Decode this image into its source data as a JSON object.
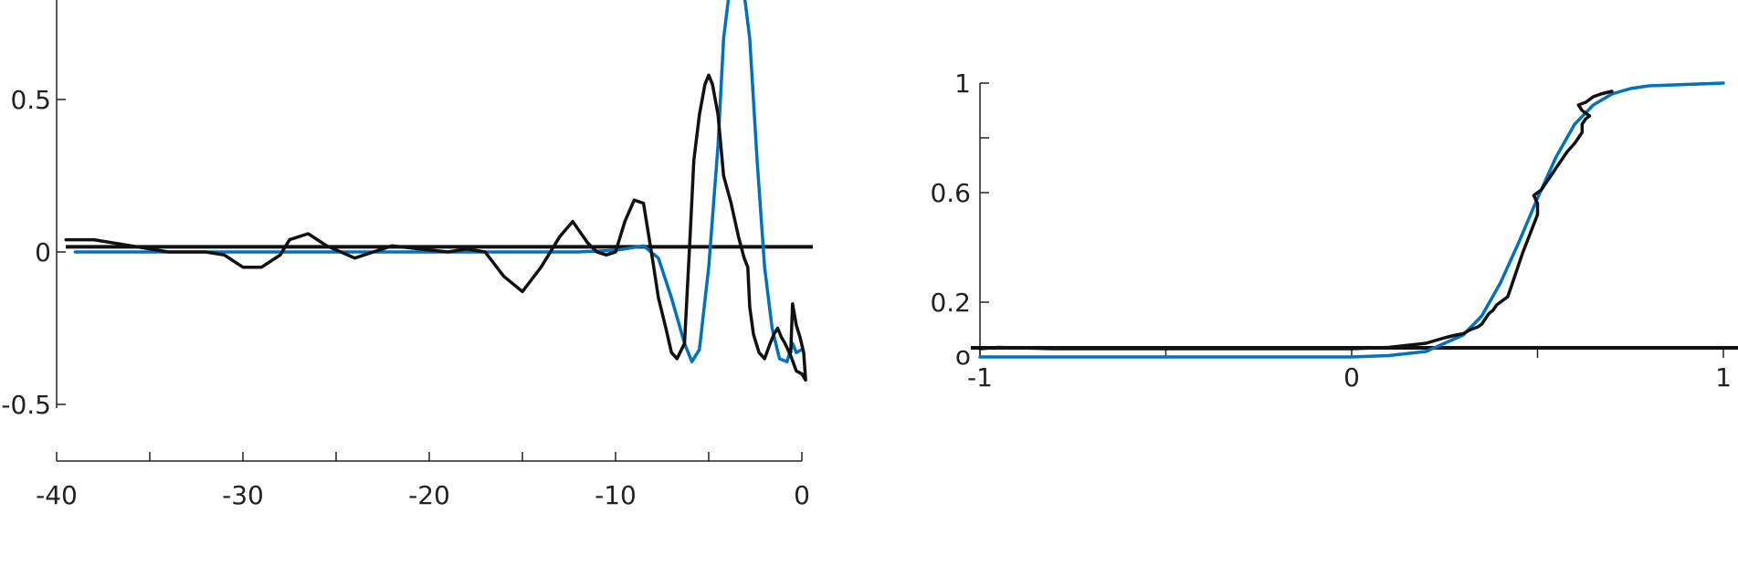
{
  "colors": {
    "blue": "#0072bd",
    "black": "#111111"
  },
  "chart_data": [
    {
      "type": "line",
      "title": "",
      "xlabel": "",
      "ylabel": "",
      "xlim": [
        -40,
        0
      ],
      "ylim": [
        -0.5,
        0.8
      ],
      "grid": false,
      "x_ticks": [
        -40,
        -35,
        -30,
        -25,
        -20,
        -15,
        -10,
        -5,
        0
      ],
      "x_tick_labels": [
        {
          "value": -40,
          "label": "-40"
        },
        {
          "value": -30,
          "label": "-30"
        },
        {
          "value": -20,
          "label": "-20"
        },
        {
          "value": -10,
          "label": "-10"
        },
        {
          "value": 0,
          "label": "0"
        }
      ],
      "y_tick_labels": [
        {
          "value": 0.5,
          "label": "0.5"
        },
        {
          "value": 0,
          "label": "0"
        },
        {
          "value": -0.5,
          "label": "-0.5"
        }
      ],
      "reference_line_y": 0.017,
      "series": [
        {
          "color": "#0072bd",
          "x": [
            -39.0,
            -36.0,
            -32.0,
            -28.0,
            -24.0,
            -20.0,
            -16.0,
            -12.0,
            -10.0,
            -8.5,
            -7.7,
            -7.0,
            -6.3,
            -5.9,
            -5.5,
            -5.0,
            -4.5,
            -4.2,
            -3.9,
            -3.6,
            -3.2,
            -2.8,
            -2.4,
            -2.0,
            -1.6,
            -1.2,
            -0.8,
            -0.5,
            -0.3,
            0.0
          ],
          "y": [
            0.0,
            0.0,
            0.0,
            0.0,
            0.0,
            0.0,
            0.0,
            0.0,
            0.005,
            0.02,
            -0.02,
            -0.15,
            -0.3,
            -0.36,
            -0.32,
            -0.05,
            0.35,
            0.7,
            0.85,
            0.9,
            0.9,
            0.7,
            0.3,
            -0.05,
            -0.25,
            -0.35,
            -0.36,
            -0.3,
            -0.33,
            -0.32
          ]
        },
        {
          "color": "#111111",
          "x": [
            -39.5,
            -38.0,
            -36.0,
            -34.0,
            -32.0,
            -31.0,
            -30.0,
            -29.0,
            -28.0,
            -27.5,
            -26.5,
            -25.5,
            -24.0,
            -23.0,
            -22.0,
            -20.5,
            -19.0,
            -18.0,
            -17.0,
            -16.0,
            -15.0,
            -14.0,
            -13.0,
            -12.3,
            -11.5,
            -11.0,
            -10.5,
            -10.0,
            -9.5,
            -9.0,
            -8.5,
            -8.0,
            -7.7,
            -7.3,
            -7.0,
            -6.7,
            -6.3,
            -6.0,
            -5.8,
            -5.5,
            -5.2,
            -5.0,
            -4.8,
            -4.5,
            -4.2,
            -3.8,
            -3.4,
            -3.1,
            -2.9,
            -2.8,
            -2.6,
            -2.3,
            -2.0,
            -1.7,
            -1.5,
            -1.3,
            -1.1,
            -0.9,
            -0.6,
            -0.3,
            0.0,
            0.2,
            0.1,
            -0.1,
            -0.3,
            -0.5,
            -0.6
          ],
          "y": [
            0.04,
            0.04,
            0.02,
            0.0,
            0.0,
            -0.01,
            -0.05,
            -0.05,
            -0.01,
            0.04,
            0.06,
            0.02,
            -0.02,
            0.0,
            0.02,
            0.01,
            0.0,
            0.01,
            0.0,
            -0.08,
            -0.13,
            -0.05,
            0.05,
            0.1,
            0.03,
            0.0,
            -0.01,
            0.0,
            0.1,
            0.17,
            0.16,
            -0.03,
            -0.15,
            -0.25,
            -0.33,
            -0.35,
            -0.3,
            0.05,
            0.3,
            0.45,
            0.55,
            0.58,
            0.55,
            0.45,
            0.25,
            0.16,
            0.05,
            -0.02,
            -0.05,
            -0.18,
            -0.27,
            -0.33,
            -0.35,
            -0.3,
            -0.27,
            -0.25,
            -0.28,
            -0.3,
            -0.34,
            -0.39,
            -0.4,
            -0.42,
            -0.33,
            -0.28,
            -0.24,
            -0.17,
            -0.33
          ]
        }
      ]
    },
    {
      "type": "line",
      "title": "",
      "xlabel": "",
      "ylabel": "",
      "xlim": [
        -1,
        1
      ],
      "ylim": [
        0,
        1
      ],
      "grid": false,
      "x_ticks": [
        -1,
        -0.5,
        0,
        0.5,
        1
      ],
      "x_tick_labels": [
        {
          "value": -1,
          "label": "-1"
        },
        {
          "value": 0,
          "label": "0"
        },
        {
          "value": 1,
          "label": "1"
        }
      ],
      "y_ticks": [
        0.2,
        0.6,
        0.8,
        1
      ],
      "y_tick_labels": [
        {
          "value": 1,
          "label": "1"
        },
        {
          "value": 0.6,
          "label": "0.6"
        },
        {
          "value": 0.2,
          "label": "0.2"
        },
        {
          "value": 0,
          "label": "o"
        }
      ],
      "reference_line_y": 0.03,
      "series": [
        {
          "color": "#0072bd",
          "x": [
            -1.0,
            -0.8,
            -0.6,
            -0.4,
            -0.2,
            0.0,
            0.1,
            0.2,
            0.3,
            0.35,
            0.4,
            0.45,
            0.5,
            0.55,
            0.6,
            0.65,
            0.7,
            0.75,
            0.8,
            0.9,
            1.0
          ],
          "y": [
            0.0,
            0.0,
            0.0,
            0.0,
            0.0,
            0.0,
            0.005,
            0.02,
            0.08,
            0.15,
            0.27,
            0.42,
            0.58,
            0.73,
            0.85,
            0.92,
            0.96,
            0.98,
            0.99,
            0.995,
            1.0
          ]
        },
        {
          "color": "#111111",
          "x": [
            -1.0,
            -0.95,
            -0.8,
            -0.6,
            -0.4,
            -0.2,
            0.0,
            0.1,
            0.2,
            0.25,
            0.28,
            0.3,
            0.32,
            0.34,
            0.35,
            0.36,
            0.37,
            0.38,
            0.39,
            0.4,
            0.41,
            0.42,
            0.44,
            0.46,
            0.48,
            0.5,
            0.5,
            0.49,
            0.5,
            0.51,
            0.52,
            0.54,
            0.56,
            0.58,
            0.6,
            0.62,
            0.62,
            0.63,
            0.64,
            0.62,
            0.61,
            0.63,
            0.65,
            0.67,
            0.7
          ],
          "y": [
            0.03,
            0.035,
            0.03,
            0.03,
            0.03,
            0.03,
            0.03,
            0.035,
            0.05,
            0.07,
            0.08,
            0.085,
            0.1,
            0.11,
            0.12,
            0.14,
            0.16,
            0.17,
            0.19,
            0.2,
            0.21,
            0.22,
            0.3,
            0.38,
            0.45,
            0.52,
            0.56,
            0.59,
            0.6,
            0.61,
            0.63,
            0.67,
            0.71,
            0.75,
            0.78,
            0.82,
            0.85,
            0.87,
            0.88,
            0.9,
            0.92,
            0.93,
            0.95,
            0.96,
            0.97
          ]
        }
      ]
    }
  ]
}
